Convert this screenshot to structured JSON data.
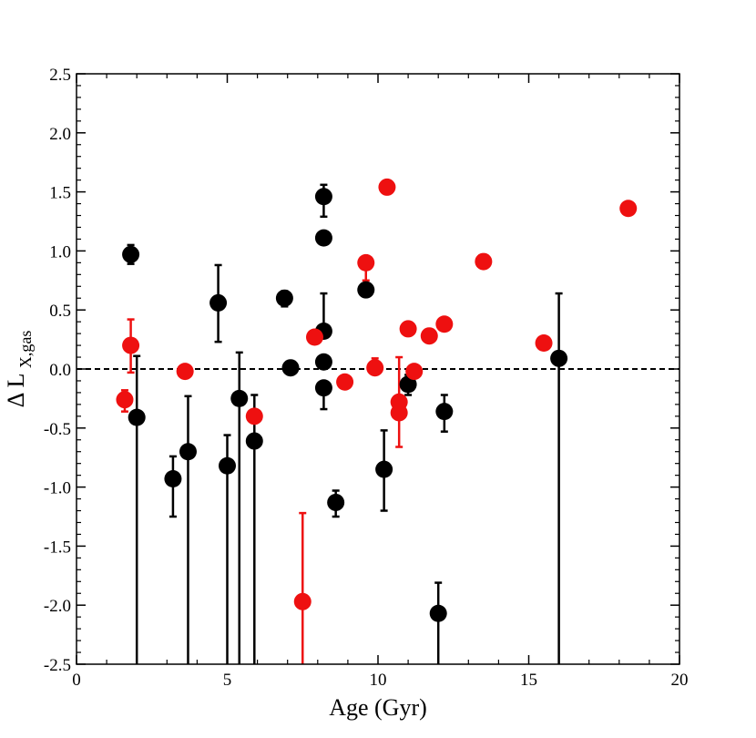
{
  "chart_data": {
    "type": "scatter",
    "title": "",
    "xlabel": "Age (Gyr)",
    "ylabel_main": "Δ L",
    "ylabel_sub": "X,gas",
    "xlim": [
      0,
      20
    ],
    "ylim": [
      -2.5,
      2.5
    ],
    "xticks": [
      0,
      5,
      10,
      15,
      20
    ],
    "yticks": [
      -2.5,
      -2.0,
      -1.5,
      -1.0,
      -0.5,
      0.0,
      0.5,
      1.0,
      1.5,
      2.0,
      2.5
    ],
    "xtick_labels": [
      "0",
      "5",
      "10",
      "15",
      "20"
    ],
    "ytick_labels": [
      "-2.5",
      "-2.0",
      "-1.5",
      "-1.0",
      "-0.5",
      "0.0",
      "0.5",
      "1.0",
      "1.5",
      "2.0",
      "2.5"
    ],
    "reference_line": {
      "y": 0.0,
      "style": "dashed"
    },
    "grid": false,
    "legend": "none",
    "series": [
      {
        "color": "#000000",
        "points": [
          {
            "x": 1.8,
            "y": 0.97,
            "lo": 0.89,
            "hi": 1.05
          },
          {
            "x": 2.0,
            "y": -0.41,
            "lo": -2.5,
            "hi": 0.11
          },
          {
            "x": 3.2,
            "y": -0.93,
            "lo": -1.25,
            "hi": -0.74
          },
          {
            "x": 3.7,
            "y": -0.7,
            "lo": -2.5,
            "hi": -0.23
          },
          {
            "x": 4.7,
            "y": 0.56,
            "lo": 0.23,
            "hi": 0.88
          },
          {
            "x": 5.0,
            "y": -0.82,
            "lo": -2.5,
            "hi": -0.56
          },
          {
            "x": 5.4,
            "y": -0.25,
            "lo": -2.5,
            "hi": 0.14
          },
          {
            "x": 5.9,
            "y": -0.61,
            "lo": -2.5,
            "hi": -0.22
          },
          {
            "x": 6.9,
            "y": 0.6,
            "lo": 0.53,
            "hi": 0.66
          },
          {
            "x": 7.1,
            "y": 0.01,
            "lo": null,
            "hi": null
          },
          {
            "x": 8.2,
            "y": 1.46,
            "lo": 1.29,
            "hi": 1.56
          },
          {
            "x": 8.2,
            "y": 1.11,
            "lo": null,
            "hi": null
          },
          {
            "x": 8.2,
            "y": 0.32,
            "lo": null,
            "hi": 0.64
          },
          {
            "x": 8.2,
            "y": 0.06,
            "lo": null,
            "hi": null
          },
          {
            "x": 8.2,
            "y": -0.16,
            "lo": -0.34,
            "hi": null
          },
          {
            "x": 8.6,
            "y": -1.13,
            "lo": -1.25,
            "hi": -1.03
          },
          {
            "x": 9.6,
            "y": 0.67,
            "lo": null,
            "hi": null
          },
          {
            "x": 10.2,
            "y": -0.85,
            "lo": -1.2,
            "hi": -0.52
          },
          {
            "x": 11.0,
            "y": -0.13,
            "lo": -0.22,
            "hi": -0.05
          },
          {
            "x": 12.0,
            "y": -2.07,
            "lo": -2.5,
            "hi": -1.81
          },
          {
            "x": 12.2,
            "y": -0.36,
            "lo": -0.53,
            "hi": -0.22
          },
          {
            "x": 16.0,
            "y": 0.09,
            "lo": -2.5,
            "hi": 0.64
          }
        ]
      },
      {
        "color": "#ee1010",
        "points": [
          {
            "x": 1.6,
            "y": -0.26,
            "lo": -0.36,
            "hi": -0.18
          },
          {
            "x": 1.8,
            "y": 0.2,
            "lo": -0.03,
            "hi": 0.42
          },
          {
            "x": 3.6,
            "y": -0.02,
            "lo": null,
            "hi": null
          },
          {
            "x": 5.9,
            "y": -0.4,
            "lo": null,
            "hi": null
          },
          {
            "x": 7.5,
            "y": -1.97,
            "lo": -2.5,
            "hi": -1.22
          },
          {
            "x": 7.9,
            "y": 0.27,
            "lo": null,
            "hi": null
          },
          {
            "x": 8.9,
            "y": -0.11,
            "lo": null,
            "hi": null
          },
          {
            "x": 9.6,
            "y": 0.9,
            "lo": 0.75,
            "hi": null
          },
          {
            "x": 9.9,
            "y": 0.01,
            "lo": null,
            "hi": 0.09
          },
          {
            "x": 10.3,
            "y": 1.54,
            "lo": null,
            "hi": null
          },
          {
            "x": 10.7,
            "y": -0.28,
            "lo": null,
            "hi": null
          },
          {
            "x": 10.7,
            "y": -0.37,
            "lo": -0.66,
            "hi": 0.1
          },
          {
            "x": 11.0,
            "y": 0.34,
            "lo": null,
            "hi": null
          },
          {
            "x": 11.2,
            "y": -0.02,
            "lo": null,
            "hi": null
          },
          {
            "x": 11.7,
            "y": 0.28,
            "lo": null,
            "hi": null
          },
          {
            "x": 12.2,
            "y": 0.38,
            "lo": null,
            "hi": null
          },
          {
            "x": 13.5,
            "y": 0.91,
            "lo": null,
            "hi": null
          },
          {
            "x": 15.5,
            "y": 0.22,
            "lo": null,
            "hi": null
          },
          {
            "x": 18.3,
            "y": 1.36,
            "lo": null,
            "hi": null
          }
        ]
      }
    ]
  }
}
